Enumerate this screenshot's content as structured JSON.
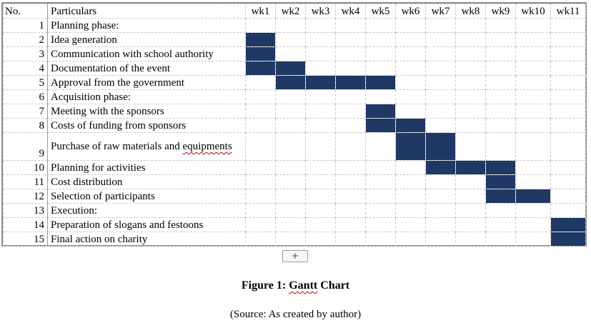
{
  "header": {
    "no": "No.",
    "particulars": "Particulars",
    "weeks": [
      "wk1",
      "wk2",
      "wk3",
      "wk4",
      "wk5",
      "wk6",
      "wk7",
      "wk8",
      "wk9",
      "wk10",
      "wk11"
    ]
  },
  "rows": [
    {
      "no": "1",
      "task": "Planning phase:",
      "weeks": []
    },
    {
      "no": "2",
      "task": "Idea generation",
      "weeks": [
        1
      ]
    },
    {
      "no": "3",
      "task": "Communication with school authority",
      "weeks": [
        1
      ]
    },
    {
      "no": "4",
      "task": "Documentation of the event",
      "weeks": [
        1,
        2
      ]
    },
    {
      "no": "5",
      "task": "Approval from the government",
      "weeks": [
        2,
        3,
        4,
        5
      ]
    },
    {
      "no": "6",
      "task": "Acquisition phase:",
      "weeks": []
    },
    {
      "no": "7",
      "task": "Meeting with the sponsors",
      "weeks": [
        5
      ]
    },
    {
      "no": "8",
      "task": "Costs of funding from sponsors",
      "weeks": [
        5,
        6
      ]
    },
    {
      "no": "9",
      "task": "Purchase of raw materials and equipments",
      "weeks": [
        6,
        7
      ],
      "tall": true
    },
    {
      "no": "10",
      "task": "Planning for activities",
      "weeks": [
        7,
        8,
        9
      ]
    },
    {
      "no": "11",
      "task": "Cost distribution",
      "weeks": [
        9
      ]
    },
    {
      "no": "12",
      "task": "Selection of participants",
      "weeks": [
        9,
        10
      ]
    },
    {
      "no": "13",
      "task": "Execution:",
      "weeks": []
    },
    {
      "no": "14",
      "task": "Preparation of slogans and festoons",
      "weeks": [
        11
      ]
    },
    {
      "no": "15",
      "task": "Final action on charity",
      "weeks": [
        11
      ]
    }
  ],
  "fill_color": "#1f3864",
  "add_sheet_label": "+",
  "caption": {
    "title": "Figure 1: Gantt Chart",
    "source": "(Source: As created by author)"
  }
}
